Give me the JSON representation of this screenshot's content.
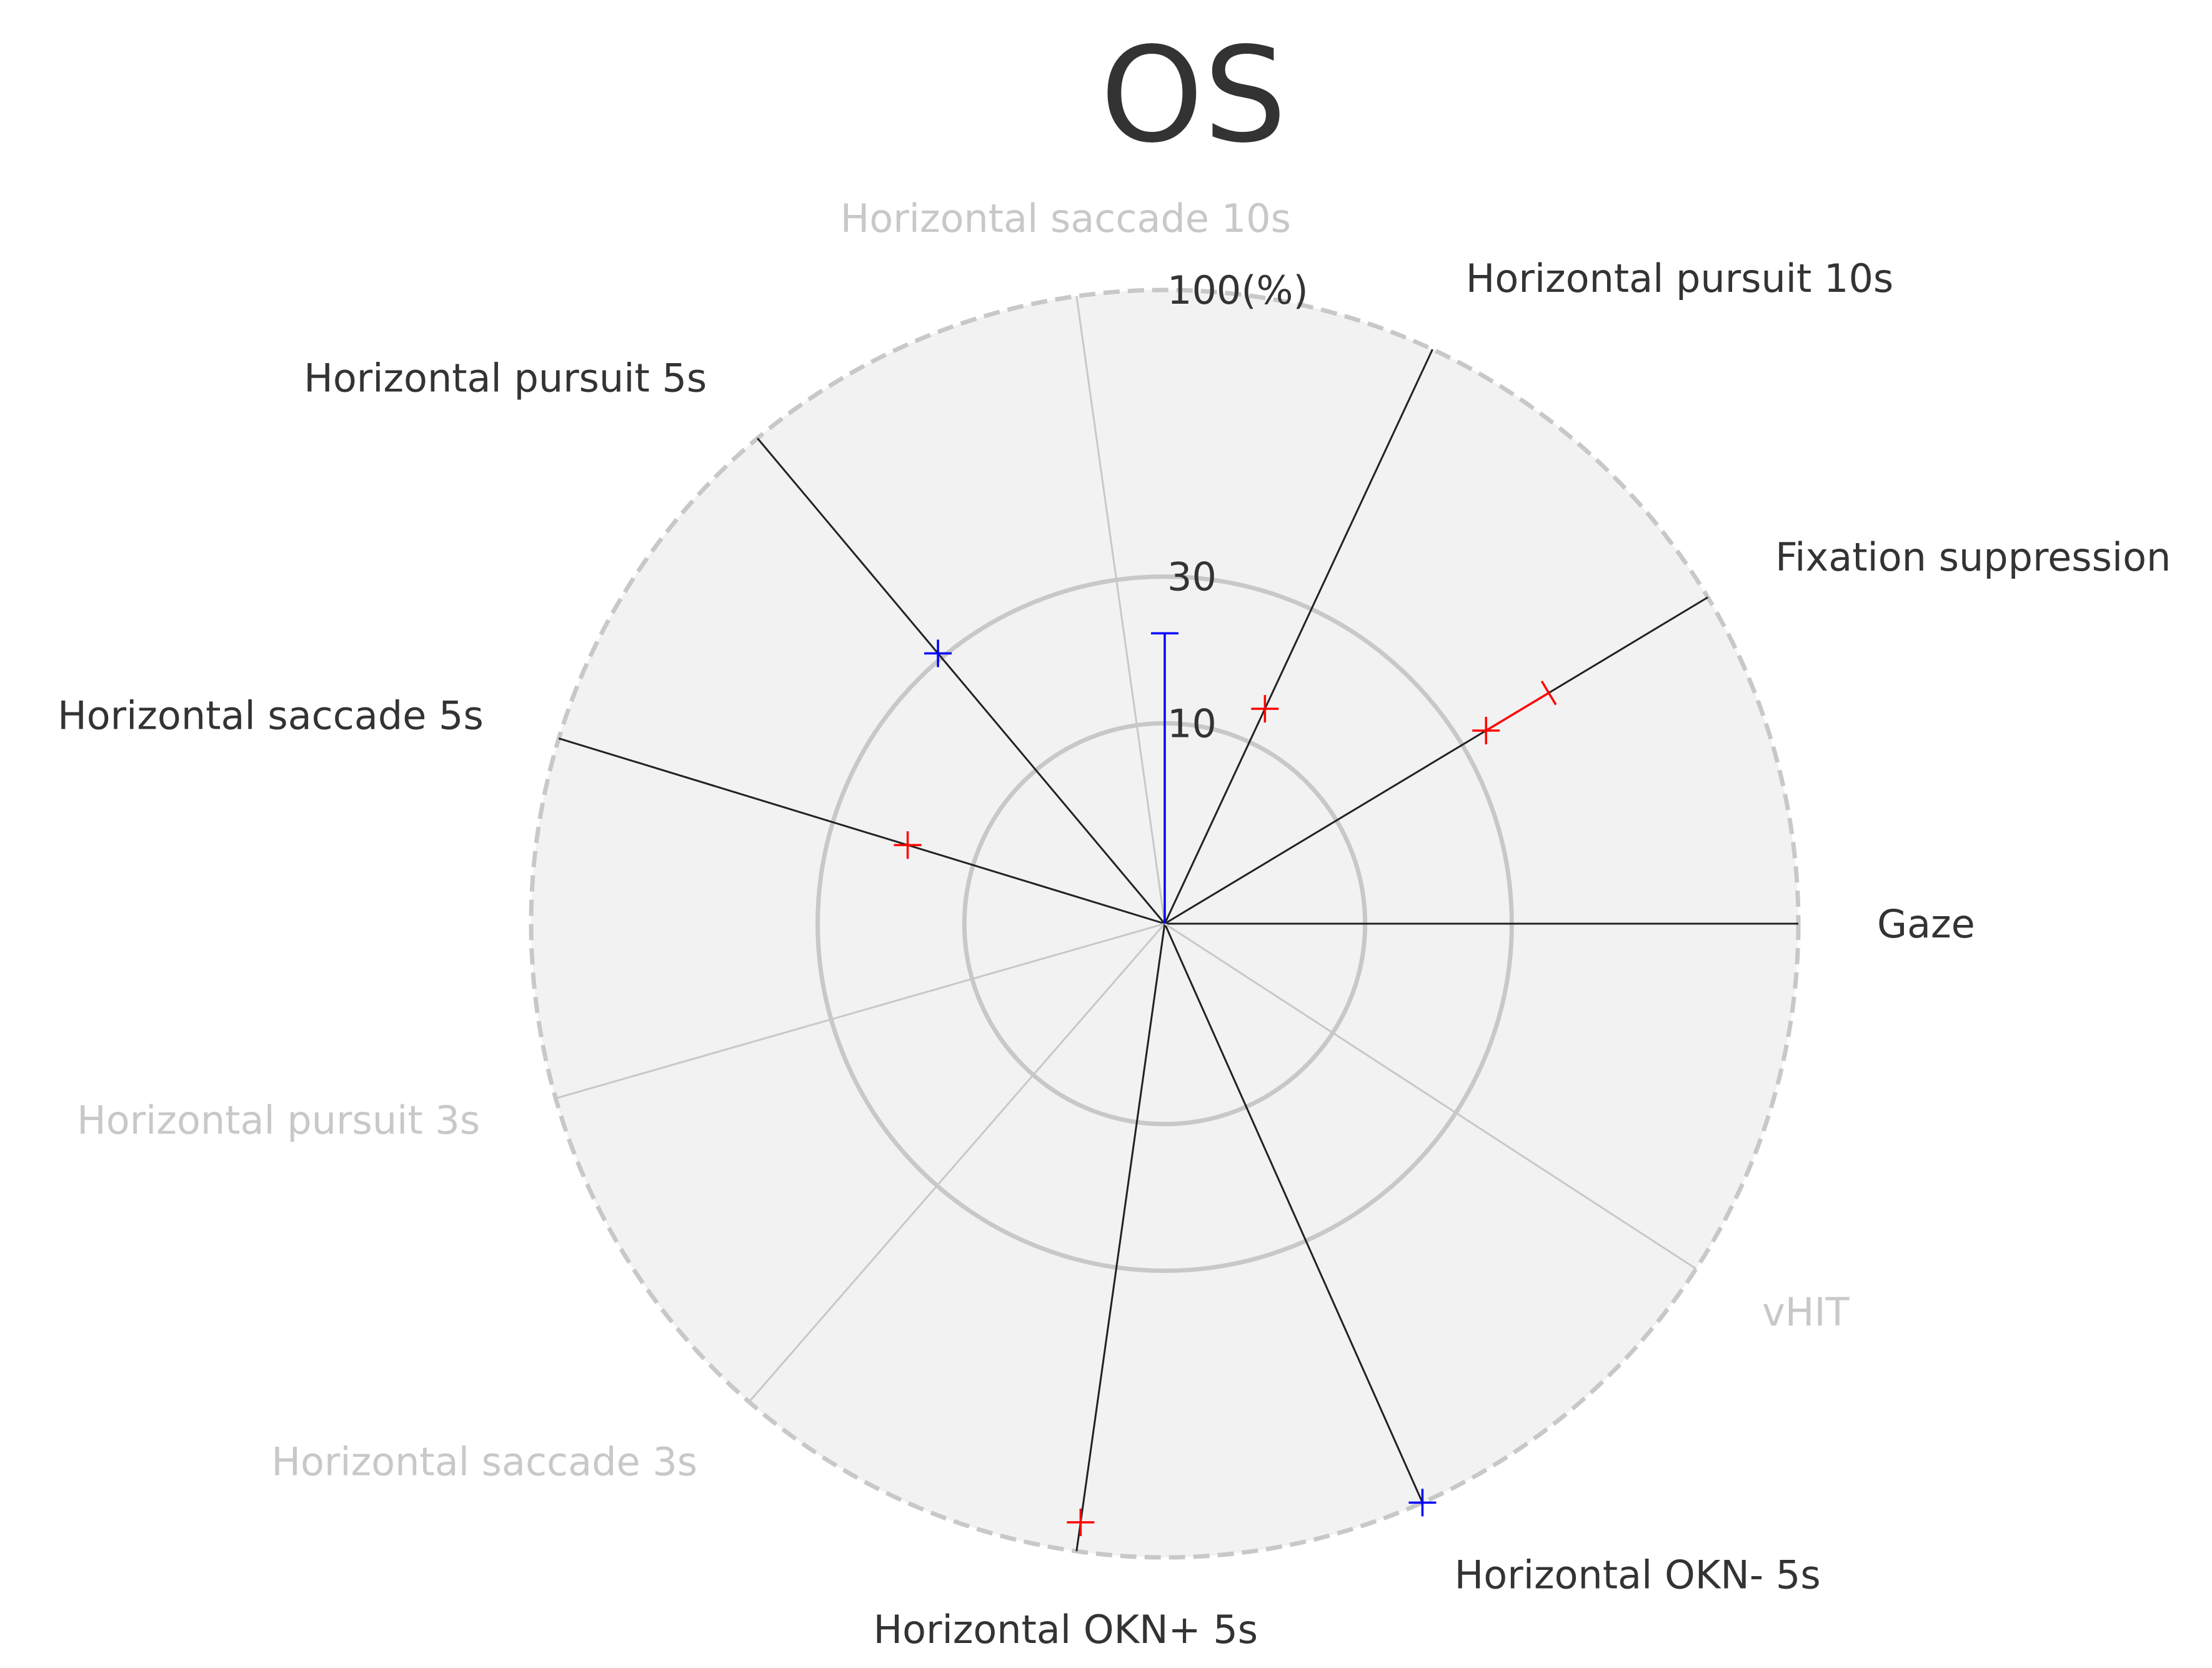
{
  "chart_data": {
    "type": "radar",
    "title": "OS",
    "r_tick_labels": [
      {
        "value": 10,
        "label": "10"
      },
      {
        "value": 30,
        "label": "30"
      },
      {
        "value": 100,
        "label": "100(%)"
      }
    ],
    "r_max": 100,
    "axes": [
      {
        "name": "Gaze",
        "angle_deg": 0,
        "active": true
      },
      {
        "name": "Fixation suppression",
        "angle_deg": 31,
        "active": true
      },
      {
        "name": "Horizontal pursuit 10s",
        "angle_deg": 65,
        "active": true
      },
      {
        "name": "Horizontal saccade 10s",
        "angle_deg": 98,
        "active": false
      },
      {
        "name": "Horizontal pursuit 5s",
        "angle_deg": 130,
        "active": true
      },
      {
        "name": "Horizontal saccade 5s",
        "angle_deg": 163,
        "active": true
      },
      {
        "name": "Horizontal pursuit 3s",
        "angle_deg": 196,
        "active": false
      },
      {
        "name": "Horizontal saccade 3s",
        "angle_deg": 229,
        "active": false
      },
      {
        "name": "Horizontal OKN+ 5s",
        "angle_deg": 262,
        "active": true
      },
      {
        "name": "Horizontal OKN- 5s",
        "angle_deg": 294,
        "active": true
      },
      {
        "name": "vHIT",
        "angle_deg": 327,
        "active": false
      }
    ],
    "series": [
      {
        "color": "#ff0000",
        "points": [
          {
            "axis": "Fixation suppression",
            "value": 35,
            "err_high": 50
          },
          {
            "axis": "Horizontal pursuit 10s",
            "value": 14
          },
          {
            "axis": "Horizontal saccade 5s",
            "value": 18
          },
          {
            "axis": "Horizontal OKN+ 5s",
            "value": 91
          }
        ]
      },
      {
        "color": "#0000ff",
        "points": [
          {
            "axis": "Horizontal saccade 10s",
            "value": 0,
            "err_high": 21,
            "err_angle_deg": 90
          },
          {
            "axis": "Horizontal pursuit 5s",
            "value": 31
          },
          {
            "axis": "Horizontal OKN- 5s",
            "value": 100
          }
        ]
      }
    ],
    "colors": {
      "background_fill": "#f2f2f2",
      "grid": "#c8c8c8",
      "active_axis": "#222222",
      "inactive_axis": "#c8c8c8",
      "active_label": "#333333",
      "inactive_label": "#c8c8c8"
    }
  }
}
